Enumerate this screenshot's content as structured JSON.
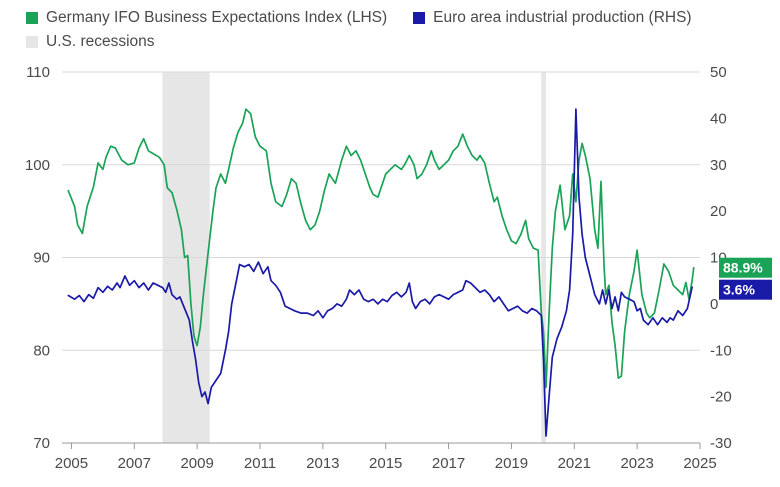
{
  "chart_data": {
    "type": "line",
    "title": "",
    "xlabel": "",
    "x_ticks": [
      "2005",
      "2007",
      "2009",
      "2011",
      "2013",
      "2015",
      "2017",
      "2019",
      "2021",
      "2023",
      "2025"
    ],
    "x_range": [
      2004.7,
      2025.0
    ],
    "left_axis": {
      "ticks": [
        "70",
        "80",
        "90",
        "100",
        "110"
      ],
      "range": [
        70,
        110
      ]
    },
    "right_axis": {
      "ticks": [
        "-30",
        "-20",
        "-10",
        "0",
        "10",
        "20",
        "30",
        "40",
        "50"
      ],
      "range": [
        -30,
        50
      ]
    },
    "grid": true,
    "legend": {
      "ifo": "Germany IFO Business Expectations Index (LHS)",
      "ip": "Euro area industrial production (RHS)",
      "recession": "U.S. recessions"
    },
    "colors": {
      "ifo": "#1aa357",
      "ip": "#1a1aa8",
      "recession": "#e6e6e6"
    },
    "recessions": [
      [
        2007.9,
        2009.4
      ],
      [
        2019.95,
        2020.1
      ]
    ],
    "series": [
      {
        "name": "Germany IFO Business Expectations Index (LHS)",
        "axis": "left",
        "end_label": "88.9%",
        "points": [
          [
            2004.9,
            97.2
          ],
          [
            2005.1,
            95.5
          ],
          [
            2005.2,
            93.5
          ],
          [
            2005.35,
            92.6
          ],
          [
            2005.5,
            95.5
          ],
          [
            2005.7,
            97.6
          ],
          [
            2005.85,
            100.2
          ],
          [
            2006.0,
            99.5
          ],
          [
            2006.1,
            100.8
          ],
          [
            2006.25,
            102.0
          ],
          [
            2006.4,
            101.8
          ],
          [
            2006.6,
            100.5
          ],
          [
            2006.8,
            100.0
          ],
          [
            2007.0,
            100.2
          ],
          [
            2007.15,
            101.8
          ],
          [
            2007.3,
            102.8
          ],
          [
            2007.45,
            101.5
          ],
          [
            2007.6,
            101.2
          ],
          [
            2007.8,
            100.8
          ],
          [
            2007.95,
            100.0
          ],
          [
            2008.05,
            97.5
          ],
          [
            2008.2,
            97.0
          ],
          [
            2008.35,
            95.2
          ],
          [
            2008.5,
            93.0
          ],
          [
            2008.6,
            90.0
          ],
          [
            2008.7,
            90.2
          ],
          [
            2008.8,
            85.0
          ],
          [
            2008.9,
            81.5
          ],
          [
            2009.0,
            80.5
          ],
          [
            2009.1,
            82.5
          ],
          [
            2009.2,
            86.0
          ],
          [
            2009.35,
            90.5
          ],
          [
            2009.5,
            95.0
          ],
          [
            2009.6,
            97.5
          ],
          [
            2009.75,
            99.0
          ],
          [
            2009.9,
            98.0
          ],
          [
            2010.0,
            99.5
          ],
          [
            2010.15,
            101.8
          ],
          [
            2010.3,
            103.5
          ],
          [
            2010.45,
            104.5
          ],
          [
            2010.55,
            106.0
          ],
          [
            2010.7,
            105.5
          ],
          [
            2010.85,
            103.0
          ],
          [
            2011.0,
            102.0
          ],
          [
            2011.2,
            101.5
          ],
          [
            2011.35,
            98.0
          ],
          [
            2011.5,
            96.0
          ],
          [
            2011.7,
            95.5
          ],
          [
            2011.85,
            96.8
          ],
          [
            2012.0,
            98.5
          ],
          [
            2012.15,
            98.0
          ],
          [
            2012.3,
            95.8
          ],
          [
            2012.45,
            94.0
          ],
          [
            2012.6,
            93.0
          ],
          [
            2012.75,
            93.5
          ],
          [
            2012.9,
            95.0
          ],
          [
            2013.05,
            97.2
          ],
          [
            2013.2,
            99.0
          ],
          [
            2013.4,
            98.0
          ],
          [
            2013.6,
            100.5
          ],
          [
            2013.75,
            102.0
          ],
          [
            2013.9,
            101.0
          ],
          [
            2014.05,
            101.5
          ],
          [
            2014.2,
            100.5
          ],
          [
            2014.35,
            99.0
          ],
          [
            2014.5,
            97.5
          ],
          [
            2014.6,
            96.8
          ],
          [
            2014.75,
            96.5
          ],
          [
            2014.9,
            98.0
          ],
          [
            2015.0,
            99.0
          ],
          [
            2015.15,
            99.5
          ],
          [
            2015.3,
            100.0
          ],
          [
            2015.5,
            99.5
          ],
          [
            2015.6,
            100.0
          ],
          [
            2015.75,
            101.0
          ],
          [
            2015.9,
            100.0
          ],
          [
            2016.0,
            98.5
          ],
          [
            2016.15,
            99.0
          ],
          [
            2016.3,
            100.0
          ],
          [
            2016.45,
            101.5
          ],
          [
            2016.55,
            100.5
          ],
          [
            2016.7,
            99.5
          ],
          [
            2016.85,
            100.0
          ],
          [
            2017.0,
            100.5
          ],
          [
            2017.15,
            101.5
          ],
          [
            2017.3,
            102.0
          ],
          [
            2017.45,
            103.3
          ],
          [
            2017.6,
            102.0
          ],
          [
            2017.75,
            101.0
          ],
          [
            2017.9,
            100.5
          ],
          [
            2018.0,
            101.0
          ],
          [
            2018.15,
            100.2
          ],
          [
            2018.3,
            98.0
          ],
          [
            2018.45,
            96.0
          ],
          [
            2018.55,
            96.5
          ],
          [
            2018.7,
            94.5
          ],
          [
            2018.85,
            93.0
          ],
          [
            2019.0,
            91.8
          ],
          [
            2019.15,
            91.5
          ],
          [
            2019.3,
            92.5
          ],
          [
            2019.45,
            94.0
          ],
          [
            2019.55,
            92.0
          ],
          [
            2019.7,
            91.0
          ],
          [
            2019.85,
            90.8
          ],
          [
            2019.95,
            84.0
          ],
          [
            2020.02,
            82.0
          ],
          [
            2020.1,
            76.0
          ],
          [
            2020.2,
            84.0
          ],
          [
            2020.3,
            91.0
          ],
          [
            2020.4,
            95.0
          ],
          [
            2020.55,
            97.8
          ],
          [
            2020.7,
            93.0
          ],
          [
            2020.85,
            94.5
          ],
          [
            2020.95,
            99.0
          ],
          [
            2021.05,
            96.0
          ],
          [
            2021.15,
            100.5
          ],
          [
            2021.25,
            102.3
          ],
          [
            2021.35,
            101.0
          ],
          [
            2021.5,
            98.5
          ],
          [
            2021.65,
            93.0
          ],
          [
            2021.75,
            91.0
          ],
          [
            2021.85,
            98.2
          ],
          [
            2021.95,
            89.0
          ],
          [
            2022.0,
            86.0
          ],
          [
            2022.1,
            87.0
          ],
          [
            2022.2,
            83.0
          ],
          [
            2022.3,
            80.5
          ],
          [
            2022.4,
            77.0
          ],
          [
            2022.5,
            77.2
          ],
          [
            2022.6,
            82.0
          ],
          [
            2022.75,
            86.0
          ],
          [
            2022.9,
            88.5
          ],
          [
            2023.0,
            90.8
          ],
          [
            2023.15,
            86.0
          ],
          [
            2023.3,
            84.0
          ],
          [
            2023.4,
            83.5
          ],
          [
            2023.55,
            84.0
          ],
          [
            2023.7,
            86.5
          ],
          [
            2023.85,
            89.3
          ],
          [
            2024.0,
            88.5
          ],
          [
            2024.15,
            87.0
          ],
          [
            2024.3,
            86.5
          ],
          [
            2024.45,
            86.0
          ],
          [
            2024.55,
            87.3
          ],
          [
            2024.65,
            85.5
          ],
          [
            2024.75,
            87.5
          ],
          [
            2024.8,
            88.9
          ]
        ]
      },
      {
        "name": "Euro area industrial production (RHS)",
        "axis": "right",
        "end_label": "3.6%",
        "points": [
          [
            2004.9,
            1.8
          ],
          [
            2005.1,
            1.0
          ],
          [
            2005.25,
            1.8
          ],
          [
            2005.4,
            0.5
          ],
          [
            2005.55,
            2.0
          ],
          [
            2005.7,
            1.2
          ],
          [
            2005.85,
            3.5
          ],
          [
            2006.0,
            2.5
          ],
          [
            2006.15,
            3.8
          ],
          [
            2006.3,
            3.0
          ],
          [
            2006.45,
            4.5
          ],
          [
            2006.55,
            3.5
          ],
          [
            2006.7,
            6.0
          ],
          [
            2006.85,
            4.0
          ],
          [
            2007.0,
            5.0
          ],
          [
            2007.15,
            3.5
          ],
          [
            2007.3,
            4.5
          ],
          [
            2007.45,
            3.0
          ],
          [
            2007.6,
            4.5
          ],
          [
            2007.75,
            4.0
          ],
          [
            2007.9,
            3.5
          ],
          [
            2008.0,
            2.5
          ],
          [
            2008.1,
            4.5
          ],
          [
            2008.2,
            2.0
          ],
          [
            2008.35,
            1.0
          ],
          [
            2008.45,
            1.5
          ],
          [
            2008.6,
            -1.0
          ],
          [
            2008.75,
            -3.5
          ],
          [
            2008.85,
            -8.0
          ],
          [
            2008.95,
            -12.0
          ],
          [
            2009.05,
            -17.0
          ],
          [
            2009.15,
            -20.0
          ],
          [
            2009.25,
            -19.0
          ],
          [
            2009.35,
            -21.5
          ],
          [
            2009.45,
            -18.0
          ],
          [
            2009.6,
            -16.5
          ],
          [
            2009.75,
            -15.0
          ],
          [
            2009.9,
            -10.0
          ],
          [
            2010.0,
            -6.0
          ],
          [
            2010.1,
            0.0
          ],
          [
            2010.25,
            5.0
          ],
          [
            2010.35,
            8.5
          ],
          [
            2010.5,
            8.0
          ],
          [
            2010.65,
            8.5
          ],
          [
            2010.8,
            7.0
          ],
          [
            2010.95,
            9.0
          ],
          [
            2011.1,
            6.5
          ],
          [
            2011.25,
            8.0
          ],
          [
            2011.35,
            5.0
          ],
          [
            2011.5,
            4.0
          ],
          [
            2011.65,
            2.5
          ],
          [
            2011.8,
            -0.5
          ],
          [
            2011.95,
            -1.0
          ],
          [
            2012.1,
            -1.5
          ],
          [
            2012.3,
            -2.0
          ],
          [
            2012.5,
            -2.0
          ],
          [
            2012.7,
            -2.5
          ],
          [
            2012.85,
            -1.5
          ],
          [
            2013.0,
            -3.0
          ],
          [
            2013.15,
            -1.5
          ],
          [
            2013.3,
            -1.0
          ],
          [
            2013.45,
            0.0
          ],
          [
            2013.6,
            -0.5
          ],
          [
            2013.75,
            1.0
          ],
          [
            2013.85,
            3.0
          ],
          [
            2014.0,
            2.0
          ],
          [
            2014.15,
            3.0
          ],
          [
            2014.3,
            1.0
          ],
          [
            2014.45,
            0.5
          ],
          [
            2014.6,
            1.0
          ],
          [
            2014.75,
            0.0
          ],
          [
            2014.9,
            1.0
          ],
          [
            2015.05,
            0.5
          ],
          [
            2015.2,
            1.8
          ],
          [
            2015.35,
            2.5
          ],
          [
            2015.5,
            1.5
          ],
          [
            2015.65,
            2.5
          ],
          [
            2015.75,
            4.5
          ],
          [
            2015.85,
            0.5
          ],
          [
            2015.95,
            -1.0
          ],
          [
            2016.1,
            0.5
          ],
          [
            2016.25,
            1.0
          ],
          [
            2016.4,
            0.0
          ],
          [
            2016.55,
            1.5
          ],
          [
            2016.7,
            2.0
          ],
          [
            2016.85,
            1.5
          ],
          [
            2017.0,
            1.0
          ],
          [
            2017.15,
            2.0
          ],
          [
            2017.3,
            2.5
          ],
          [
            2017.45,
            3.0
          ],
          [
            2017.55,
            5.0
          ],
          [
            2017.7,
            4.5
          ],
          [
            2017.85,
            3.5
          ],
          [
            2018.0,
            2.5
          ],
          [
            2018.15,
            3.0
          ],
          [
            2018.3,
            2.0
          ],
          [
            2018.45,
            0.5
          ],
          [
            2018.6,
            1.5
          ],
          [
            2018.75,
            0.0
          ],
          [
            2018.9,
            -1.5
          ],
          [
            2019.05,
            -1.0
          ],
          [
            2019.2,
            -0.5
          ],
          [
            2019.35,
            -1.5
          ],
          [
            2019.5,
            -2.0
          ],
          [
            2019.65,
            -1.0
          ],
          [
            2019.8,
            -1.5
          ],
          [
            2019.95,
            -2.5
          ],
          [
            2020.02,
            -12.0
          ],
          [
            2020.1,
            -28.5
          ],
          [
            2020.2,
            -20.0
          ],
          [
            2020.3,
            -11.5
          ],
          [
            2020.45,
            -7.5
          ],
          [
            2020.6,
            -5.0
          ],
          [
            2020.75,
            -1.5
          ],
          [
            2020.85,
            3.0
          ],
          [
            2020.95,
            15.0
          ],
          [
            2021.05,
            42.0
          ],
          [
            2021.15,
            23.0
          ],
          [
            2021.25,
            15.0
          ],
          [
            2021.35,
            10.0
          ],
          [
            2021.5,
            6.0
          ],
          [
            2021.65,
            2.0
          ],
          [
            2021.8,
            0.0
          ],
          [
            2021.9,
            3.0
          ],
          [
            2022.0,
            0.0
          ],
          [
            2022.1,
            3.0
          ],
          [
            2022.2,
            -1.0
          ],
          [
            2022.3,
            1.5
          ],
          [
            2022.4,
            -1.5
          ],
          [
            2022.5,
            2.5
          ],
          [
            2022.6,
            1.5
          ],
          [
            2022.75,
            1.0
          ],
          [
            2022.9,
            0.5
          ],
          [
            2023.0,
            -1.5
          ],
          [
            2023.1,
            -1.0
          ],
          [
            2023.2,
            -3.5
          ],
          [
            2023.35,
            -4.5
          ],
          [
            2023.5,
            -3.0
          ],
          [
            2023.65,
            -4.5
          ],
          [
            2023.8,
            -3.0
          ],
          [
            2023.95,
            -4.0
          ],
          [
            2024.05,
            -3.0
          ],
          [
            2024.15,
            -3.5
          ],
          [
            2024.3,
            -1.5
          ],
          [
            2024.45,
            -2.5
          ],
          [
            2024.6,
            -1.0
          ],
          [
            2024.75,
            3.6
          ]
        ]
      }
    ]
  }
}
